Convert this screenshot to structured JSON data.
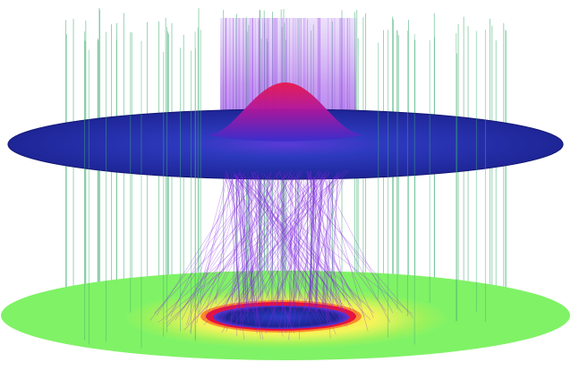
{
  "scene": {
    "description_free": true,
    "colors": {
      "background": "#ffffff",
      "green_rays": "#3fae72",
      "purple_rays": "#8a2be2",
      "upper_disk_edge": "#1a1f8c",
      "upper_disk_body": "#2b33b8",
      "bump_peak": "#e0195a",
      "bump_mid": "#c2156e",
      "screen_outer": "#7cf36a",
      "screen_ring_yellow": "#ffe94a",
      "screen_ring_orange": "#ff8a2a",
      "screen_ring_red": "#e8123a",
      "screen_center": "#1d1f8f",
      "screen_center_edge": "#6a38d6"
    }
  }
}
